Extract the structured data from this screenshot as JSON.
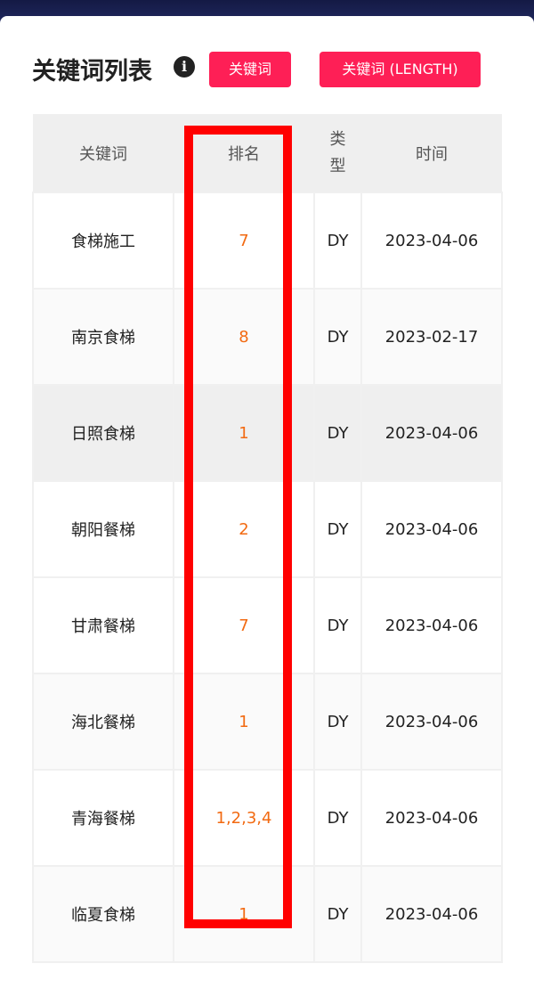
{
  "title": "关键词列表",
  "info_icon": "info-circle-icon",
  "buttons": [
    "关键词",
    "关键词 (LENGTH)"
  ],
  "table": {
    "headers": [
      "关键词",
      "排名",
      "类\n型",
      "时间"
    ],
    "rows": [
      {
        "keyword": "食梯施工",
        "rank": "7",
        "type": "DY",
        "date": "2023-04-06"
      },
      {
        "keyword": "南京食梯",
        "rank": "8",
        "type": "DY",
        "date": "2023-02-17"
      },
      {
        "keyword": "日照食梯",
        "rank": "1",
        "type": "DY",
        "date": "2023-04-06"
      },
      {
        "keyword": "朝阳餐梯",
        "rank": "2",
        "type": "DY",
        "date": "2023-04-06"
      },
      {
        "keyword": "甘肃餐梯",
        "rank": "7",
        "type": "DY",
        "date": "2023-04-06"
      },
      {
        "keyword": "海北餐梯",
        "rank": "1",
        "type": "DY",
        "date": "2023-04-06"
      },
      {
        "keyword": "青海餐梯",
        "rank": "1,2,3,4",
        "type": "DY",
        "date": "2023-04-06"
      },
      {
        "keyword": "临夏食梯",
        "rank": "1",
        "type": "DY",
        "date": "2023-04-06"
      }
    ]
  },
  "colors": {
    "accent": "#fe1f56",
    "rank": "#f26a12",
    "highlight_box": "#ff0000"
  }
}
